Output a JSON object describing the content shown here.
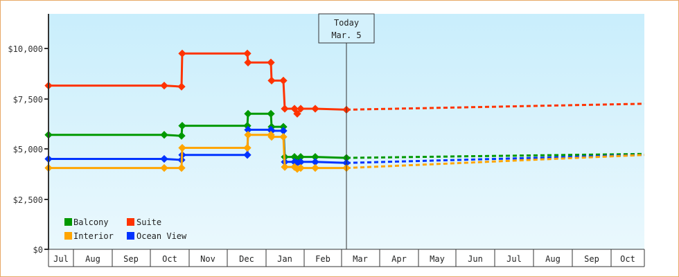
{
  "chart_data": {
    "type": "line",
    "title": "",
    "xlabel": "",
    "ylabel": "",
    "ylim": [
      0,
      11500
    ],
    "y_ticks": [
      "$0",
      "$2,500",
      "$5,000",
      "$7,500",
      "$10,000"
    ],
    "categories": [
      "Jul",
      "Aug",
      "Sep",
      "Oct",
      "Nov",
      "Dec",
      "Jan",
      "Feb",
      "Mar",
      "Apr",
      "May",
      "Jun",
      "Jul",
      "Aug",
      "Sep",
      "Oct"
    ],
    "today_marker": {
      "label": "Today",
      "date": "Mar. 5"
    },
    "legend": [
      {
        "name": "Balcony",
        "color": "#009900"
      },
      {
        "name": "Suite",
        "color": "#ff3300"
      },
      {
        "name": "Interior",
        "color": "#ffa500"
      },
      {
        "name": "Ocean View",
        "color": "#0033ff"
      }
    ],
    "series": [
      {
        "name": "Suite",
        "color": "#ff3300",
        "history": [
          [
            70,
            8150
          ],
          [
            237,
            8150
          ],
          [
            262,
            8100
          ],
          [
            263,
            9750
          ],
          [
            357,
            9750
          ],
          [
            358,
            9300
          ],
          [
            391,
            9300
          ],
          [
            392,
            8400
          ],
          [
            409,
            8400
          ],
          [
            411,
            7000
          ],
          [
            425,
            7000
          ],
          [
            429,
            6750
          ],
          [
            434,
            7000
          ],
          [
            455,
            7000
          ],
          [
            500,
            6950
          ]
        ],
        "forecast": [
          [
            500,
            6950
          ],
          [
            930,
            7250
          ]
        ]
      },
      {
        "name": "Balcony",
        "color": "#009900",
        "history": [
          [
            70,
            5700
          ],
          [
            237,
            5700
          ],
          [
            262,
            5650
          ],
          [
            263,
            6150
          ],
          [
            357,
            6150
          ],
          [
            358,
            6750
          ],
          [
            391,
            6750
          ],
          [
            392,
            6100
          ],
          [
            409,
            6100
          ],
          [
            411,
            4600
          ],
          [
            425,
            4600
          ],
          [
            429,
            4450
          ],
          [
            434,
            4600
          ],
          [
            455,
            4600
          ],
          [
            500,
            4550
          ]
        ],
        "forecast": [
          [
            500,
            4550
          ],
          [
            930,
            4750
          ]
        ]
      },
      {
        "name": "Ocean View",
        "color": "#0033ff",
        "history": [
          [
            70,
            4500
          ],
          [
            237,
            4500
          ],
          [
            262,
            4450
          ],
          [
            263,
            4700
          ],
          [
            357,
            4700
          ],
          [
            358,
            5950
          ],
          [
            391,
            5950
          ],
          [
            392,
            5900
          ],
          [
            409,
            5900
          ],
          [
            411,
            4350
          ],
          [
            425,
            4350
          ],
          [
            429,
            4300
          ],
          [
            434,
            4350
          ],
          [
            455,
            4350
          ],
          [
            500,
            4300
          ]
        ],
        "forecast": [
          [
            500,
            4300
          ],
          [
            930,
            4700
          ]
        ]
      },
      {
        "name": "Interior",
        "color": "#ffa500",
        "history": [
          [
            70,
            4050
          ],
          [
            237,
            4050
          ],
          [
            262,
            4050
          ],
          [
            263,
            5050
          ],
          [
            357,
            5050
          ],
          [
            358,
            5700
          ],
          [
            391,
            5700
          ],
          [
            392,
            5600
          ],
          [
            409,
            5600
          ],
          [
            411,
            4100
          ],
          [
            425,
            4100
          ],
          [
            429,
            4000
          ],
          [
            434,
            4050
          ],
          [
            455,
            4050
          ],
          [
            500,
            4050
          ]
        ],
        "forecast": [
          [
            500,
            4050
          ],
          [
            930,
            4700
          ]
        ]
      }
    ]
  },
  "axis": {
    "y_labels": [
      "$10,000",
      "$7,500",
      "$5,000",
      "$2,500",
      "$0"
    ],
    "months": [
      "Jul",
      "Aug",
      "Sep",
      "Oct",
      "Nov",
      "Dec",
      "Jan",
      "Feb",
      "Mar",
      "Apr",
      "May",
      "Jun",
      "Jul",
      "Aug",
      "Sep",
      "Oct"
    ]
  },
  "today": {
    "line1": "Today",
    "line2": "Mar. 5"
  },
  "legend": {
    "balcony": "Balcony",
    "suite": "Suite",
    "interior": "Interior",
    "ocean_view": "Ocean View"
  }
}
